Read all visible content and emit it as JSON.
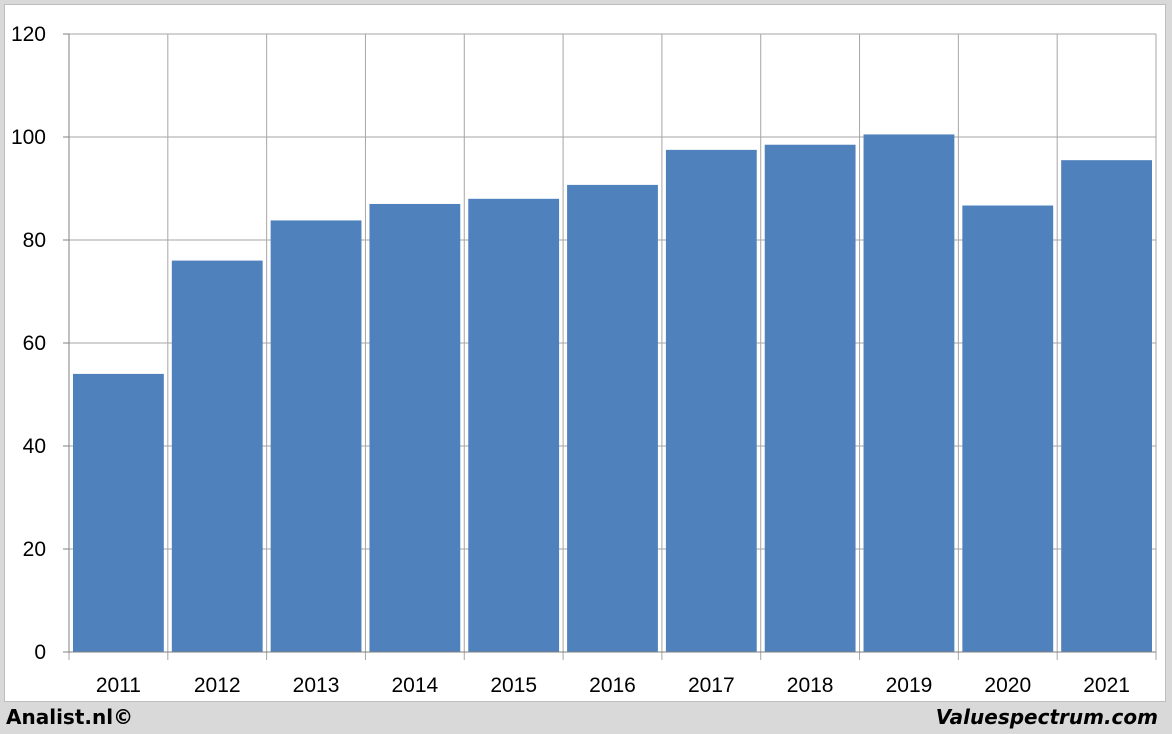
{
  "chart_data": {
    "type": "bar",
    "categories": [
      "2011",
      "2012",
      "2013",
      "2014",
      "2015",
      "2016",
      "2017",
      "2018",
      "2019",
      "2020",
      "2021"
    ],
    "values": [
      54,
      76,
      83.8,
      87,
      88,
      90.7,
      97.5,
      98.5,
      100.5,
      86.7,
      95.5
    ],
    "ylim": [
      0,
      120
    ],
    "yticks": [
      0,
      20,
      40,
      60,
      80,
      100,
      120
    ],
    "grid": true,
    "bar_color": "#4f81bd",
    "gridline_color": "#a6a6a6"
  },
  "footer": {
    "left_text": "Analist.nl©",
    "right_text": "Valuespectrum.com"
  }
}
